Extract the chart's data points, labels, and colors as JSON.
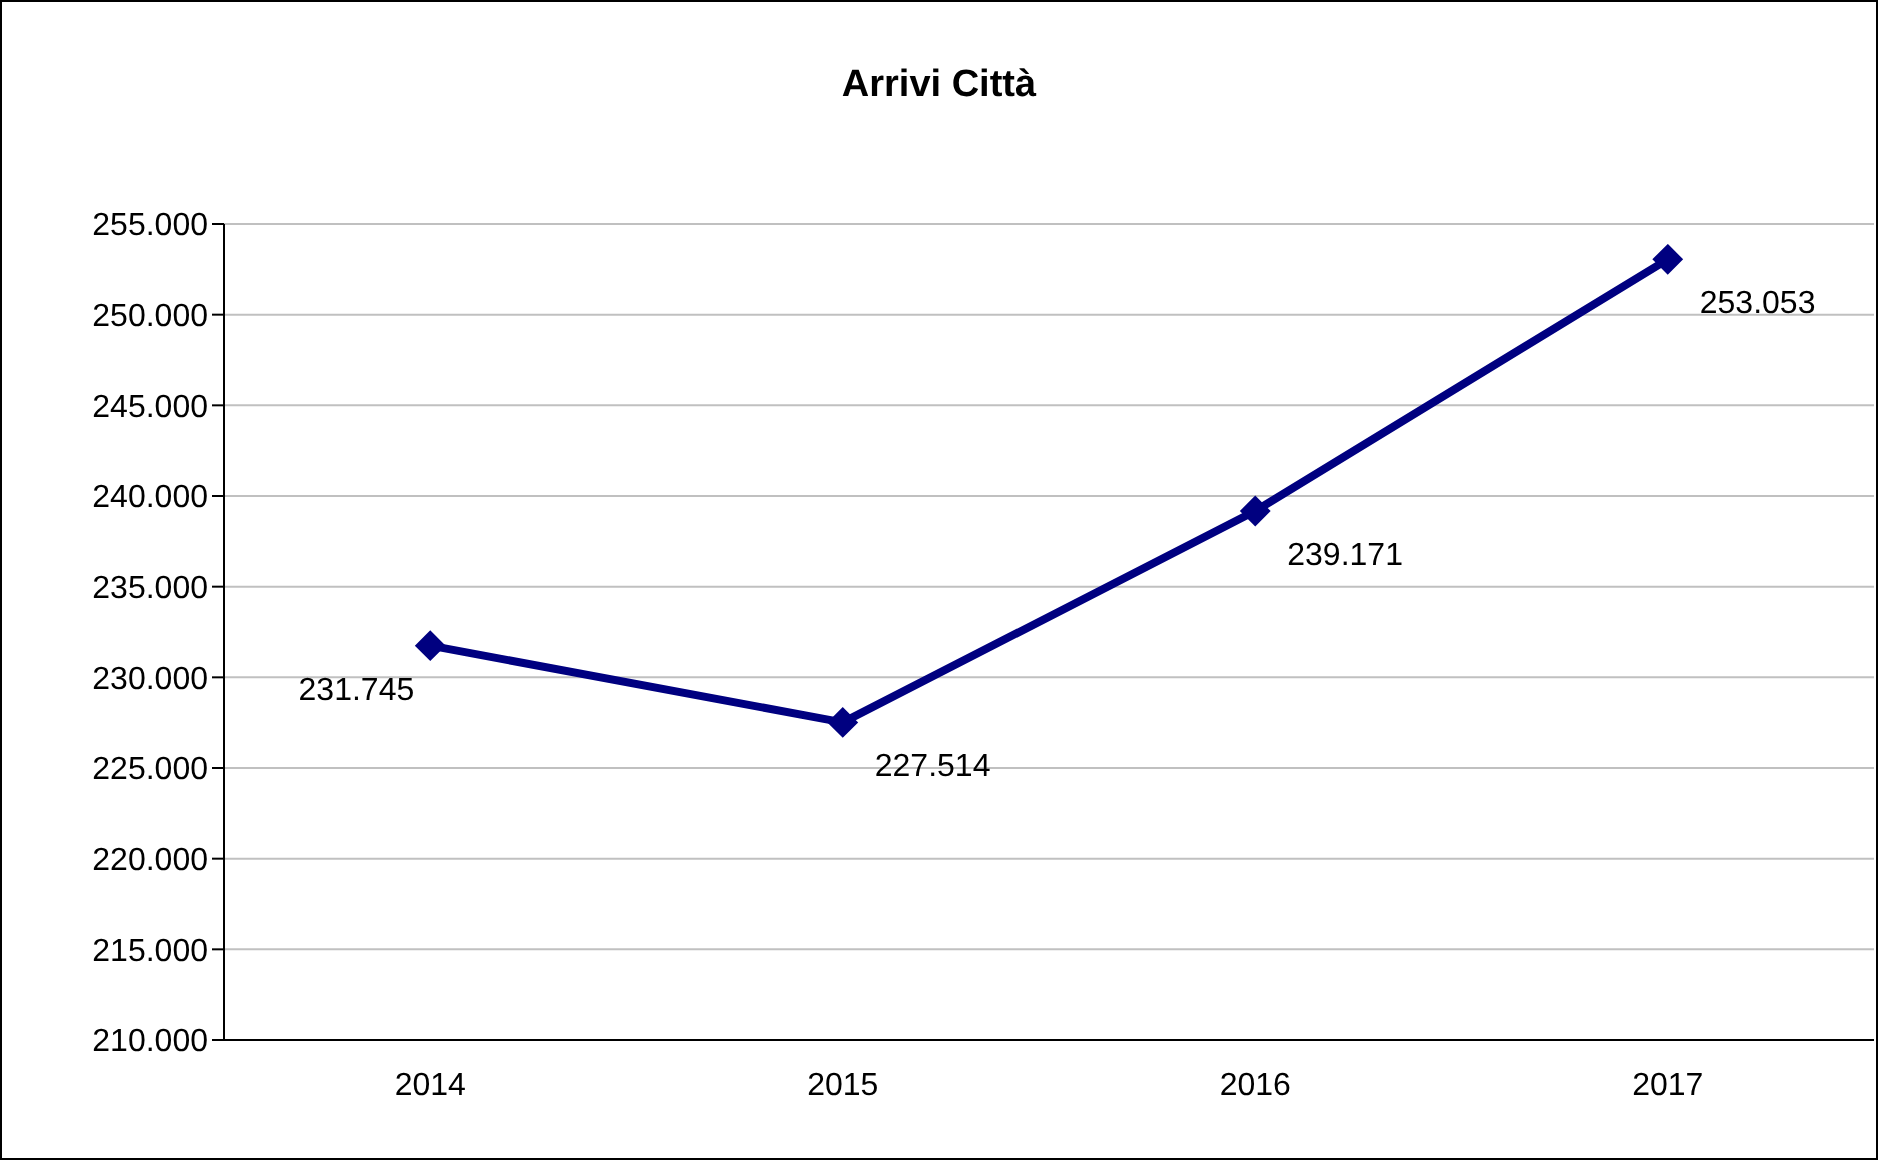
{
  "chart_data": {
    "type": "line",
    "title": "Arrivi Città",
    "categories": [
      "2014",
      "2015",
      "2016",
      "2017"
    ],
    "series": [
      {
        "color": "#000080",
        "values": [
          231745,
          227514,
          239171,
          253053
        ],
        "value_labels": [
          "231.745",
          "227.514",
          "239.171",
          "253.053"
        ]
      }
    ],
    "ylim": [
      210000,
      255000
    ],
    "yticks": [
      {
        "value": 210000,
        "label": "210.000"
      },
      {
        "value": 215000,
        "label": "215.000"
      },
      {
        "value": 220000,
        "label": "220.000"
      },
      {
        "value": 225000,
        "label": "225.000"
      },
      {
        "value": 230000,
        "label": "230.000"
      },
      {
        "value": 235000,
        "label": "235.000"
      },
      {
        "value": 240000,
        "label": "240.000"
      },
      {
        "value": 245000,
        "label": "245.000"
      },
      {
        "value": 250000,
        "label": "250.000"
      },
      {
        "value": 255000,
        "label": "255.000"
      }
    ],
    "grid": "y",
    "legend": false,
    "marker": "diamond",
    "line_style": "solid"
  }
}
